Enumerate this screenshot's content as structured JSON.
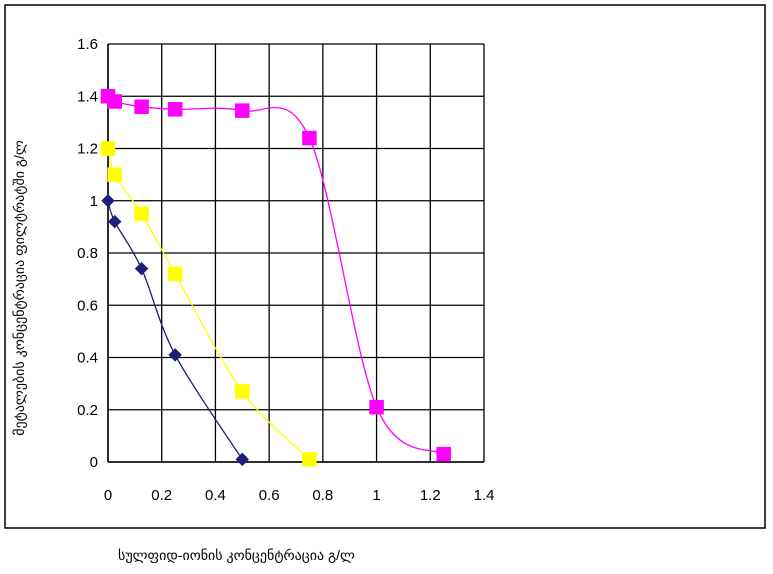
{
  "chart_data": {
    "type": "line",
    "xlabel": "სულფიდ-იონის კონცენტრაცია გ/ლ",
    "ylabel": "მეტალების კონცენტრაცია ფილტრატში გ/ლ",
    "xlim": [
      0,
      1.4
    ],
    "ylim": [
      0,
      1.6
    ],
    "x_ticks": [
      "0",
      "0.2",
      "0.4",
      "0.6",
      "0.8",
      "1",
      "1.2",
      "1.4"
    ],
    "y_ticks": [
      "0",
      "0.2",
      "0.4",
      "0.6",
      "0.8",
      "1",
      "1.2",
      "1.4",
      "1.6"
    ],
    "grid": true,
    "legend": "none",
    "series": [
      {
        "color": "#1f1f7a",
        "marker": "diamond",
        "x": [
          0,
          0.025,
          0.125,
          0.25,
          0.5
        ],
        "y": [
          1.0,
          0.92,
          0.74,
          0.41,
          0.01
        ]
      },
      {
        "color": "#ffff00",
        "marker": "square",
        "x": [
          0,
          0.025,
          0.125,
          0.25,
          0.5,
          0.75
        ],
        "y": [
          1.2,
          1.1,
          0.95,
          0.72,
          0.27,
          0.01
        ]
      },
      {
        "color": "#ff00ff",
        "marker": "square",
        "x": [
          0,
          0.025,
          0.125,
          0.25,
          0.5,
          0.75,
          1.0,
          1.25
        ],
        "y": [
          1.4,
          1.38,
          1.36,
          1.35,
          1.345,
          1.24,
          0.21,
          0.03
        ]
      }
    ]
  }
}
